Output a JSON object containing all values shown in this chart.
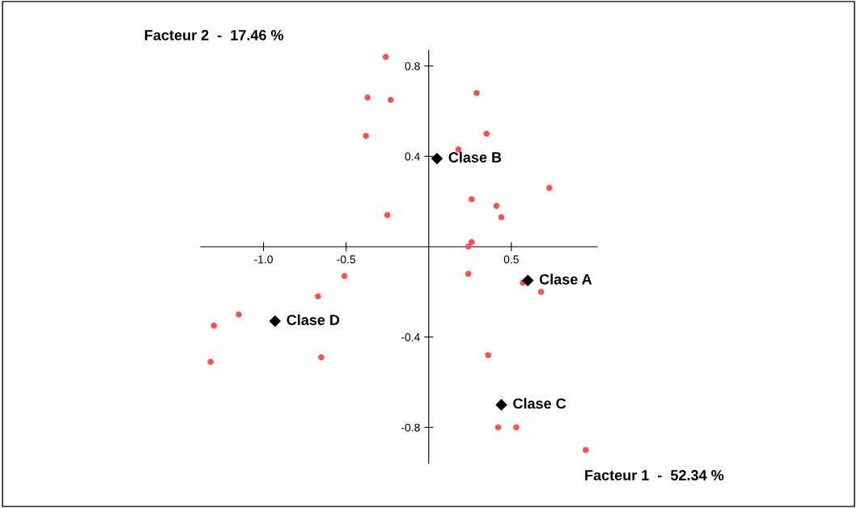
{
  "chart_data": {
    "type": "scatter",
    "xlabel": "Facteur 1  -  52.34 %",
    "ylabel": "Facteur 2  -  17.46 %",
    "xlim": [
      -1.38,
      1.02
    ],
    "ylim": [
      -0.96,
      0.87
    ],
    "xticks": [
      {
        "value": -1.0,
        "label": "-1.0"
      },
      {
        "value": -0.5,
        "label": "-0.5"
      },
      {
        "value": 0.5,
        "label": "0.5"
      }
    ],
    "yticks": [
      {
        "value": 0.8,
        "label": "0.8"
      },
      {
        "value": 0.4,
        "label": "0.4"
      },
      {
        "value": -0.4,
        "label": "-0.4"
      },
      {
        "value": -0.8,
        "label": "-0.8"
      }
    ],
    "grid": false,
    "legend": false,
    "series": [
      {
        "color": "#ff5050",
        "marker": "circle",
        "x": [
          -0.26,
          -0.37,
          -0.23,
          -0.38,
          0.29,
          0.35,
          0.18,
          0.73,
          0.26,
          0.41,
          0.44,
          -0.25,
          0.26,
          0.24,
          0.24,
          0.57,
          0.68,
          -0.51,
          -0.67,
          -1.15,
          -1.3,
          -1.32,
          -0.65,
          0.36,
          0.42,
          0.53,
          0.95
        ],
        "values": [
          0.84,
          0.66,
          0.65,
          0.49,
          0.68,
          0.5,
          0.43,
          0.26,
          0.21,
          0.18,
          0.13,
          0.14,
          0.02,
          0.0,
          -0.12,
          -0.16,
          -0.2,
          -0.13,
          -0.22,
          -0.3,
          -0.35,
          -0.51,
          -0.49,
          -0.48,
          -0.8,
          -0.8,
          -0.9
        ]
      },
      {
        "color": "#000000",
        "marker": "diamond",
        "x": [
          0.6,
          0.05,
          0.44,
          -0.93
        ],
        "values": [
          -0.15,
          0.39,
          -0.7,
          -0.33
        ]
      }
    ],
    "annotations": [
      {
        "text": "Clase A",
        "x": 0.6,
        "y": -0.15
      },
      {
        "text": "Clase B",
        "x": 0.05,
        "y": 0.39
      },
      {
        "text": "Clase C",
        "x": 0.44,
        "y": -0.7
      },
      {
        "text": "Clase D",
        "x": -0.93,
        "y": -0.33
      }
    ]
  }
}
